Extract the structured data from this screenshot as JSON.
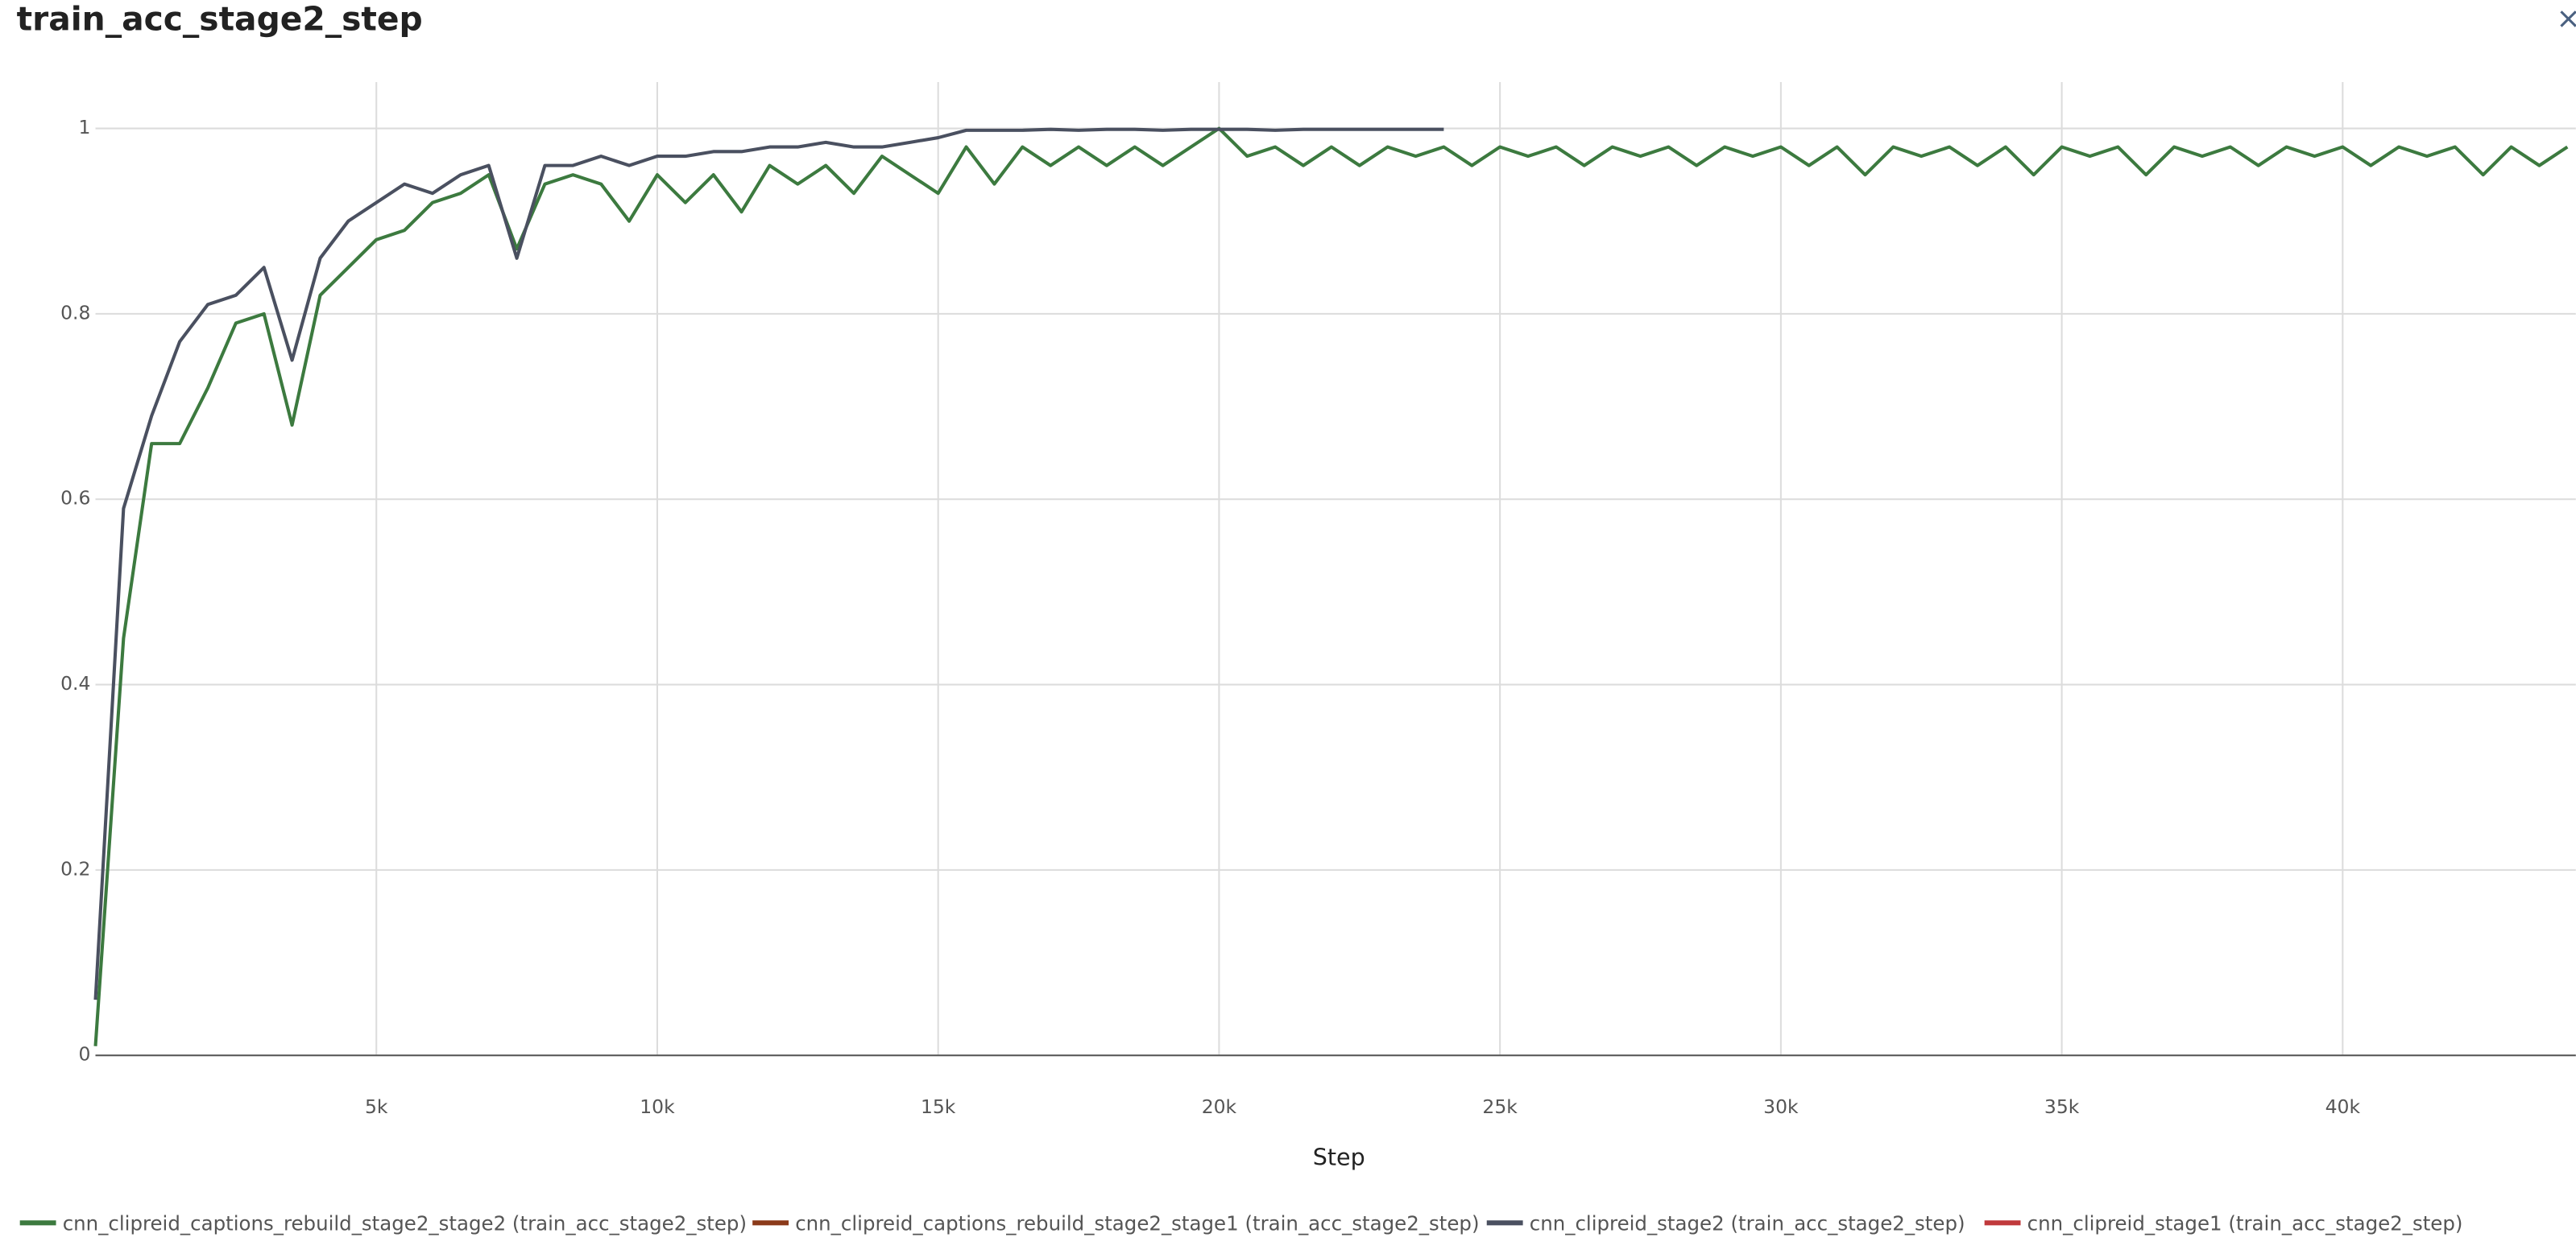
{
  "chart_data": {
    "type": "line",
    "title": "train_acc_stage2_step",
    "x_label": "Step",
    "x": [
      0,
      500,
      1000,
      1500,
      2000,
      2500,
      3000,
      3500,
      4000,
      4500,
      5000,
      5500,
      6000,
      6500,
      7000,
      7500,
      8000,
      8500,
      9000,
      9500,
      10000,
      10500,
      11000,
      11500,
      12000,
      12500,
      13000,
      13500,
      14000,
      14500,
      15000,
      15500,
      16000,
      16500,
      17000,
      17500,
      18000,
      18500,
      19000,
      19500,
      20000,
      20500,
      21000,
      21500,
      22000,
      22500,
      23000,
      23500,
      24000,
      24500,
      25000,
      25500,
      26000,
      26500,
      27000,
      27500,
      28000,
      28500,
      29000,
      29500,
      30000,
      30500,
      31000,
      31500,
      32000,
      32500,
      33000,
      33500,
      34000,
      34500,
      35000,
      35500,
      36000,
      36500,
      37000,
      37500,
      38000,
      38500,
      39000,
      39500,
      40000,
      40500,
      41000,
      41500,
      42000,
      42500,
      43000,
      43500,
      44000
    ],
    "series": [
      {
        "name": "cnn_clipreid_captions_rebuild_stage2_stage2 (train_acc_stage2_step)",
        "color": "#3c7a3f",
        "values": [
          0.01,
          0.45,
          0.66,
          0.66,
          0.72,
          0.79,
          0.8,
          0.68,
          0.82,
          0.85,
          0.88,
          0.89,
          0.92,
          0.93,
          0.95,
          0.87,
          0.94,
          0.95,
          0.94,
          0.9,
          0.95,
          0.92,
          0.95,
          0.91,
          0.96,
          0.94,
          0.96,
          0.93,
          0.97,
          0.95,
          0.93,
          0.98,
          0.94,
          0.98,
          0.96,
          0.98,
          0.96,
          0.98,
          0.96,
          0.98,
          1.0,
          0.97,
          0.98,
          0.96,
          0.98,
          0.96,
          0.98,
          0.97,
          0.98,
          0.96,
          0.98,
          0.97,
          0.98,
          0.96,
          0.98,
          0.97,
          0.98,
          0.96,
          0.98,
          0.97,
          0.98,
          0.96,
          0.98,
          0.95,
          0.98,
          0.97,
          0.98,
          0.96,
          0.98,
          0.95,
          0.98,
          0.97,
          0.98,
          0.95,
          0.98,
          0.97,
          0.98,
          0.96,
          0.98,
          0.97,
          0.98,
          0.96,
          0.98,
          0.97,
          0.98,
          0.95,
          0.98,
          0.96,
          0.98
        ]
      },
      {
        "name": "cnn_clipreid_captions_rebuild_stage2_stage1 (train_acc_stage2_step)",
        "color": "#8b3a1a",
        "values": [
          null,
          null,
          null,
          null,
          null,
          null,
          null,
          null,
          null,
          null,
          null,
          null,
          null,
          null,
          null,
          null,
          null,
          null,
          null,
          null,
          null,
          null,
          null,
          null,
          null,
          null,
          null,
          null,
          null,
          null,
          null,
          null,
          null,
          null,
          null,
          null,
          null,
          null,
          null,
          null,
          null,
          null,
          null,
          null,
          null,
          null,
          null,
          null,
          null,
          null,
          null,
          null,
          null,
          null,
          null,
          null,
          null,
          null,
          null,
          null,
          null,
          null,
          null,
          null,
          null,
          null,
          null,
          null,
          null,
          null,
          null,
          null,
          null,
          null,
          null,
          null,
          null,
          null,
          null,
          null,
          null,
          null,
          null,
          null,
          null,
          null,
          null,
          null,
          null
        ]
      },
      {
        "name": "cnn_clipreid_stage2 (train_acc_stage2_step)",
        "color": "#4a5060",
        "values": [
          0.06,
          0.59,
          0.69,
          0.77,
          0.81,
          0.82,
          0.85,
          0.75,
          0.86,
          0.9,
          0.92,
          0.94,
          0.93,
          0.95,
          0.96,
          0.86,
          0.96,
          0.96,
          0.97,
          0.96,
          0.97,
          0.97,
          0.975,
          0.975,
          0.98,
          0.98,
          0.985,
          0.98,
          0.98,
          0.985,
          0.99,
          0.998,
          0.998,
          0.998,
          0.999,
          0.998,
          0.999,
          0.999,
          0.998,
          0.999,
          0.999,
          0.999,
          0.998,
          0.999,
          0.999,
          0.999,
          0.999,
          0.999,
          0.999,
          null,
          null,
          null,
          null,
          null,
          null,
          null,
          null,
          null,
          null,
          null,
          null,
          null,
          null,
          null,
          null,
          null,
          null,
          null,
          null,
          null,
          null,
          null,
          null,
          null,
          null,
          null,
          null,
          null,
          null,
          null,
          null,
          null,
          null,
          null,
          null,
          null,
          null,
          null,
          null
        ]
      },
      {
        "name": "cnn_clipreid_stage1 (train_acc_stage2_step)",
        "color": "#c0393b",
        "values": [
          null,
          null,
          null,
          null,
          null,
          null,
          null,
          null,
          null,
          null,
          null,
          null,
          null,
          null,
          null,
          null,
          null,
          null,
          null,
          null,
          null,
          null,
          null,
          null,
          null,
          null,
          null,
          null,
          null,
          null,
          null,
          null,
          null,
          null,
          null,
          null,
          null,
          null,
          null,
          null,
          null,
          null,
          null,
          null,
          null,
          null,
          null,
          null,
          null,
          null,
          null,
          null,
          null,
          null,
          null,
          null,
          null,
          null,
          null,
          null,
          null,
          null,
          null,
          null,
          null,
          null,
          null,
          null,
          null,
          null,
          null,
          null,
          null,
          null,
          null,
          null,
          null,
          null,
          null,
          null,
          null,
          null,
          null,
          null,
          null,
          null,
          null,
          null,
          null
        ]
      }
    ],
    "xlim": [
      0,
      44150
    ],
    "ylim": [
      0,
      1.05
    ],
    "xticks": [
      {
        "value": 5000,
        "label": "5k"
      },
      {
        "value": 10000,
        "label": "10k"
      },
      {
        "value": 15000,
        "label": "15k"
      },
      {
        "value": 20000,
        "label": "20k"
      },
      {
        "value": 25000,
        "label": "25k"
      },
      {
        "value": 30000,
        "label": "30k"
      },
      {
        "value": 35000,
        "label": "35k"
      },
      {
        "value": 40000,
        "label": "40k"
      }
    ],
    "yticks": [
      0,
      0.2,
      0.4,
      0.6,
      0.8,
      1
    ],
    "grid": true
  }
}
